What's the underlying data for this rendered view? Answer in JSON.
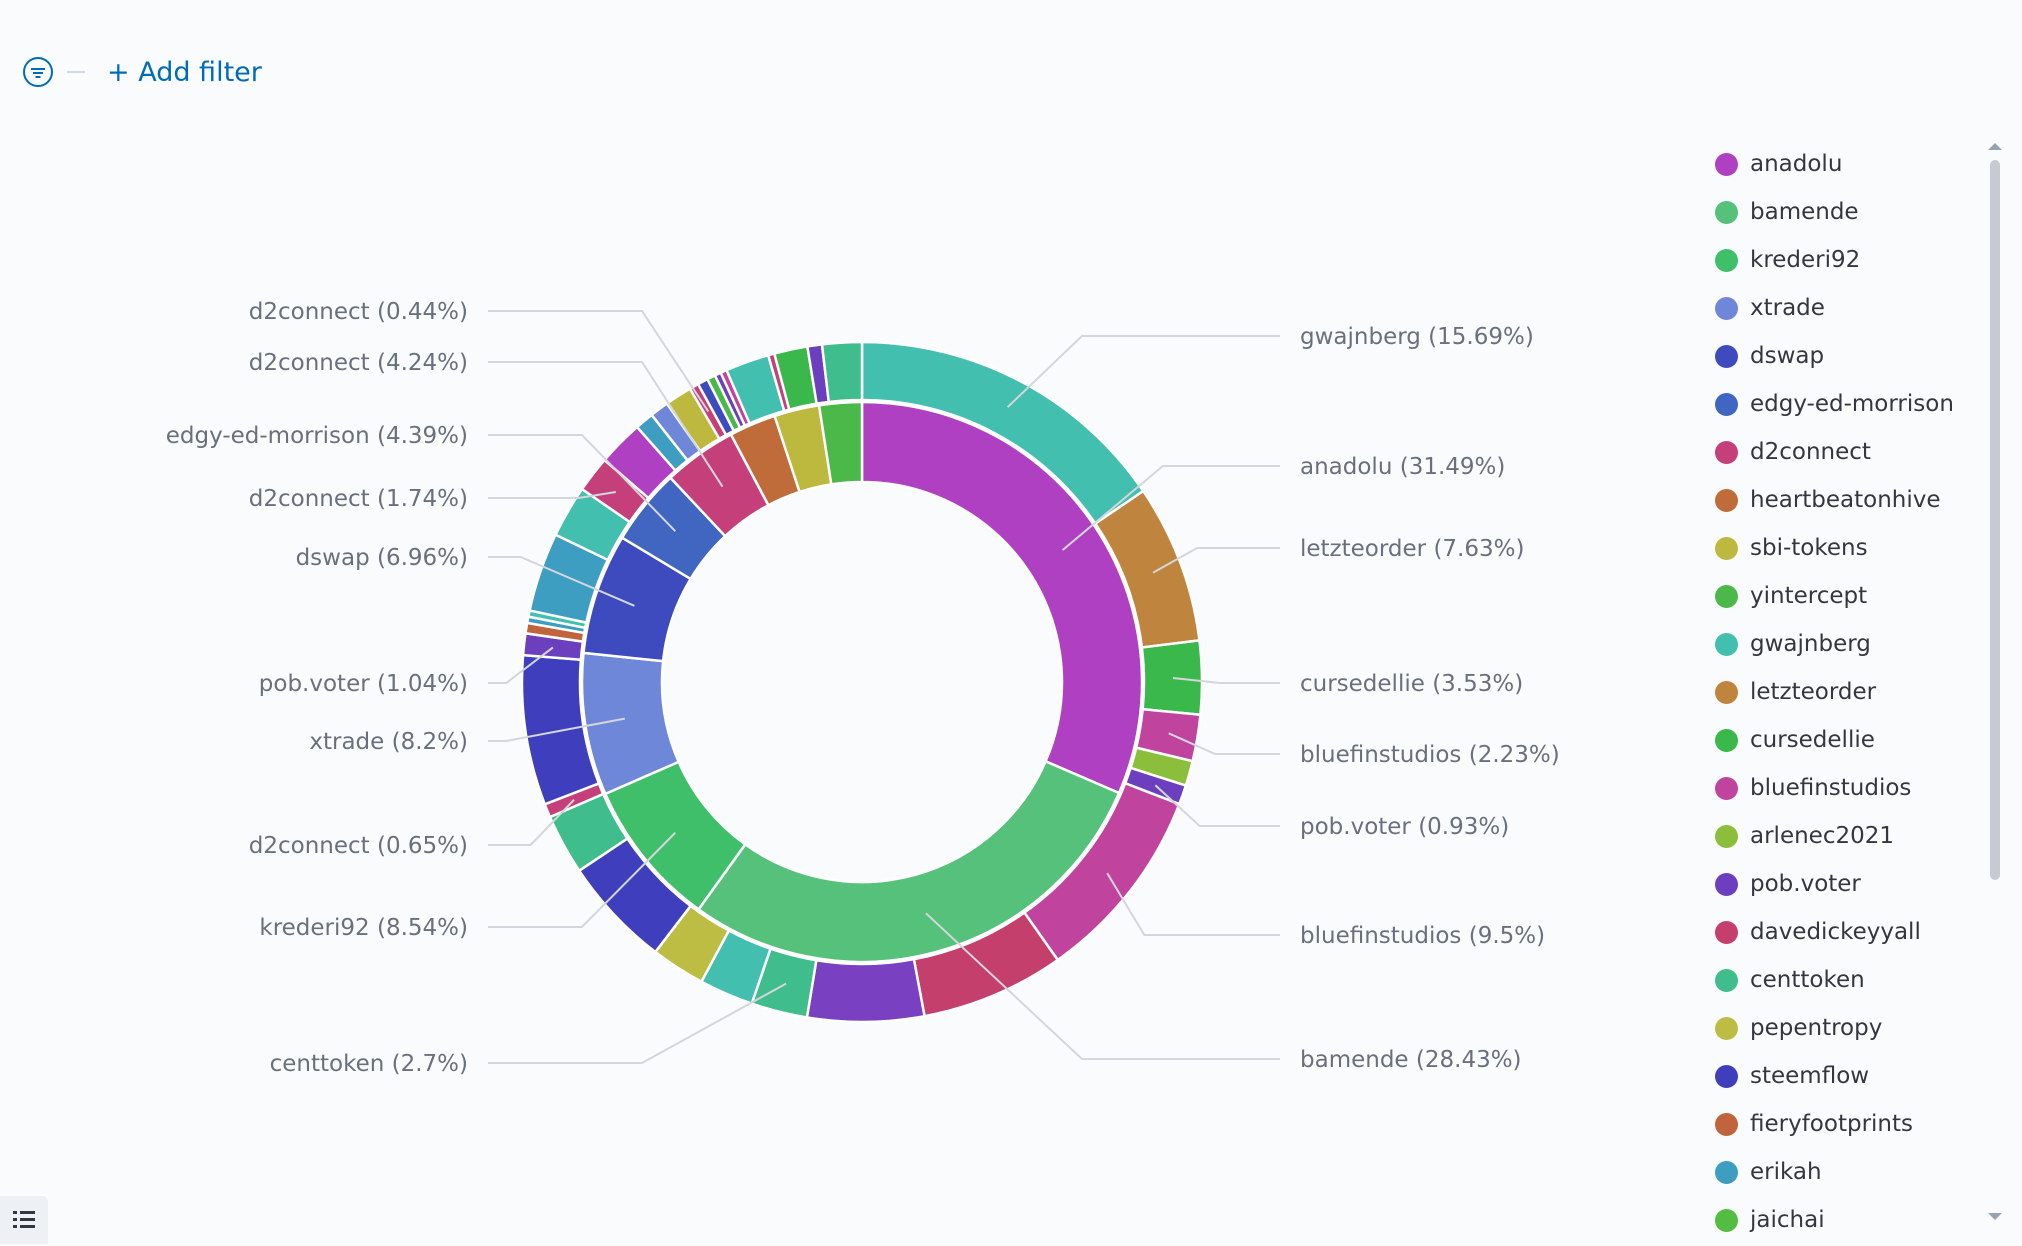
{
  "toolbar": {
    "add_filter_label": "+ Add filter",
    "filter_icon": "filter-icon"
  },
  "colors": {
    "anadolu": "#ae40c1",
    "bamende": "#56c17a",
    "kredeari92": "#3fbf6a",
    "xtrade": "#6f87d8",
    "dswap": "#3d4bbf",
    "edgy": "#4066c2",
    "d2connect": "#c5407b",
    "heartbeatonhive": "#c06c3a",
    "sbi": "#bdb83e",
    "yintercept": "#4bb84a",
    "gwajnberg": "#43bfb0",
    "letzteorder": "#bf853e",
    "cursedellie": "#3ab84b",
    "bluefinstudios": "#c0439e",
    "arlenec2021": "#8bbe3b",
    "pobvoter": "#6c3fbf",
    "davedickeyyall": "#c53f6d",
    "centtoken": "#3fbd8c",
    "pepentropy": "#bdbd43",
    "steemflow": "#3f3fbe",
    "fieryfootprints": "#c0643e",
    "erikah": "#3e9ec1",
    "jaichai": "#52bd40",
    "violet": "#7a40c2"
  },
  "legend": {
    "items": [
      {
        "label": "anadolu",
        "color": "#ae40c1"
      },
      {
        "label": "bamende",
        "color": "#56c17a"
      },
      {
        "label": "krederi92",
        "color": "#3fbf6a"
      },
      {
        "label": "xtrade",
        "color": "#6f87d8"
      },
      {
        "label": "dswap",
        "color": "#3d4bbf"
      },
      {
        "label": "edgy-ed-morrison",
        "color": "#4066c2"
      },
      {
        "label": "d2connect",
        "color": "#c5407b"
      },
      {
        "label": "heartbeatonhive",
        "color": "#c06c3a"
      },
      {
        "label": "sbi-tokens",
        "color": "#bdb83e"
      },
      {
        "label": "yintercept",
        "color": "#4bb84a"
      },
      {
        "label": "gwajnberg",
        "color": "#43bfb0"
      },
      {
        "label": "letzteorder",
        "color": "#bf853e"
      },
      {
        "label": "cursedellie",
        "color": "#3ab84b"
      },
      {
        "label": "bluefinstudios",
        "color": "#c0439e"
      },
      {
        "label": "arlenec2021",
        "color": "#8bbe3b"
      },
      {
        "label": "pob.voter",
        "color": "#6c3fbf"
      },
      {
        "label": "davedickeyyall",
        "color": "#c53f6d"
      },
      {
        "label": "centtoken",
        "color": "#3fbd8c"
      },
      {
        "label": "pepentropy",
        "color": "#bdbd43"
      },
      {
        "label": "steemflow",
        "color": "#3f3fbe"
      },
      {
        "label": "fieryfootprints",
        "color": "#c0643e"
      },
      {
        "label": "erikah",
        "color": "#3e9ec1"
      },
      {
        "label": "jaichai",
        "color": "#52bd40"
      }
    ]
  },
  "chart_data": {
    "type": "pie",
    "donut": true,
    "rings": 2,
    "inner_ring": [
      {
        "label": "anadolu",
        "value": 31.49,
        "color": "#ae40c1"
      },
      {
        "label": "bamende",
        "value": 28.43,
        "color": "#56c17a"
      },
      {
        "label": "krederi92",
        "value": 8.54,
        "color": "#3fbf6a"
      },
      {
        "label": "xtrade",
        "value": 8.2,
        "color": "#6f87d8"
      },
      {
        "label": "dswap",
        "value": 6.96,
        "color": "#3d4bbf"
      },
      {
        "label": "edgy-ed-morrison",
        "value": 4.39,
        "color": "#4066c2"
      },
      {
        "label": "d2connect",
        "value": 4.24,
        "color": "#c5407b"
      },
      {
        "label": "heartbeatonhive",
        "value": 2.7,
        "color": "#c06c3a"
      },
      {
        "label": "sbi-tokens",
        "value": 2.6,
        "color": "#bdb83e"
      },
      {
        "label": "yintercept",
        "value": 2.45,
        "color": "#4bb84a"
      }
    ],
    "outer_ring": [
      {
        "label": "gwajnberg",
        "value": 15.69,
        "color": "#43bfb0"
      },
      {
        "label": "letzteorder",
        "value": 7.63,
        "color": "#bf853e"
      },
      {
        "label": "cursedellie",
        "value": 3.53,
        "color": "#3ab84b"
      },
      {
        "label": "bluefinstudios",
        "value": 2.23,
        "color": "#c0439e"
      },
      {
        "label": "arlenec2021",
        "value": 1.2,
        "color": "#8bbe3b"
      },
      {
        "label": "pob.voter",
        "value": 0.93,
        "color": "#6c3fbf"
      },
      {
        "label": "bluefinstudios",
        "value": 9.5,
        "color": "#c0439e"
      },
      {
        "label": "davedickeyyall",
        "value": 6.9,
        "color": "#c53f6d"
      },
      {
        "label": "pob.voter",
        "value": 5.6,
        "color": "#7a40c2"
      },
      {
        "label": "centtoken",
        "value": 2.7,
        "color": "#3fbd8c"
      },
      {
        "label": "gwajnberg",
        "value": 2.6,
        "color": "#43bfb0"
      },
      {
        "label": "pepentropy",
        "value": 2.6,
        "color": "#bdbd43"
      },
      {
        "label": "steemflow",
        "value": 5.3,
        "color": "#3f3fbe"
      },
      {
        "label": "krederi92",
        "value": 2.9,
        "color": "#3fbd8c"
      },
      {
        "label": "d2connect",
        "value": 0.65,
        "color": "#c5407b"
      },
      {
        "label": "steemflow",
        "value": 7.2,
        "color": "#3f3fbe"
      },
      {
        "label": "pob.voter",
        "value": 1.04,
        "color": "#6c3fbf"
      },
      {
        "label": "fieryfootprints",
        "value": 0.5,
        "color": "#c0643e"
      },
      {
        "label": "erikah",
        "value": 0.3,
        "color": "#3e9ec1"
      },
      {
        "label": "gwajnberg",
        "value": 0.3,
        "color": "#43bfb0"
      },
      {
        "label": "erikah",
        "value": 3.8,
        "color": "#3e9ec1"
      },
      {
        "label": "gwajnberg",
        "value": 2.5,
        "color": "#43bfb0"
      },
      {
        "label": "d2connect",
        "value": 1.74,
        "color": "#c5407b"
      },
      {
        "label": "anadolu",
        "value": 2.2,
        "color": "#ae40c1"
      },
      {
        "label": "erikah",
        "value": 0.9,
        "color": "#3e9ec1"
      },
      {
        "label": "xtrade",
        "value": 0.9,
        "color": "#6f87d8"
      },
      {
        "label": "sbi-tokens",
        "value": 1.3,
        "color": "#bdb83e"
      },
      {
        "label": "d2connect",
        "value": 0.44,
        "color": "#c5407b"
      },
      {
        "label": "dswap",
        "value": 0.5,
        "color": "#3d4bbf"
      },
      {
        "label": "yintercept",
        "value": 0.4,
        "color": "#4bb84a"
      },
      {
        "label": "pob.voter",
        "value": 0.3,
        "color": "#6c3fbf"
      },
      {
        "label": "bluefinstudios",
        "value": 0.3,
        "color": "#c0439e"
      },
      {
        "label": "gwajnberg",
        "value": 2.1,
        "color": "#43bfb0"
      },
      {
        "label": "d2connect",
        "value": 0.3,
        "color": "#c5407b"
      },
      {
        "label": "cursedellie",
        "value": 1.6,
        "color": "#3ab84b"
      },
      {
        "label": "pob.voter",
        "value": 0.7,
        "color": "#6c3fbf"
      },
      {
        "label": "centtoken",
        "value": 1.9,
        "color": "#3fbd8c"
      }
    ],
    "annotations": [
      {
        "text": "gwajnberg (15.69%)",
        "side": "right",
        "ring": "outer",
        "label": "gwajnberg",
        "value": 15.69
      },
      {
        "text": "anadolu (31.49%)",
        "side": "right",
        "ring": "inner",
        "label": "anadolu",
        "value": 31.49
      },
      {
        "text": "letzteorder (7.63%)",
        "side": "right",
        "ring": "outer",
        "label": "letzteorder",
        "value": 7.63
      },
      {
        "text": "cursedellie (3.53%)",
        "side": "right",
        "ring": "outer",
        "label": "cursedellie",
        "value": 3.53
      },
      {
        "text": "bluefinstudios (2.23%)",
        "side": "right",
        "ring": "outer",
        "label": "bluefinstudios",
        "value": 2.23
      },
      {
        "text": "pob.voter (0.93%)",
        "side": "right",
        "ring": "outer",
        "label": "pob.voter",
        "value": 0.93
      },
      {
        "text": "bluefinstudios (9.5%)",
        "side": "right",
        "ring": "outer",
        "label": "bluefinstudios",
        "value": 9.5
      },
      {
        "text": "bamende (28.43%)",
        "side": "right",
        "ring": "inner",
        "label": "bamende",
        "value": 28.43
      },
      {
        "text": "centtoken (2.7%)",
        "side": "left",
        "ring": "outer",
        "label": "centtoken",
        "value": 2.7
      },
      {
        "text": "krederi92 (8.54%)",
        "side": "left",
        "ring": "inner",
        "label": "krederi92",
        "value": 8.54
      },
      {
        "text": "d2connect (0.65%)",
        "side": "left",
        "ring": "outer",
        "label": "d2connect",
        "value": 0.65
      },
      {
        "text": "xtrade (8.2%)",
        "side": "left",
        "ring": "inner",
        "label": "xtrade",
        "value": 8.2
      },
      {
        "text": "pob.voter (1.04%)",
        "side": "left",
        "ring": "outer",
        "label": "pob.voter",
        "value": 1.04
      },
      {
        "text": "dswap (6.96%)",
        "side": "left",
        "ring": "inner",
        "label": "dswap",
        "value": 6.96
      },
      {
        "text": "d2connect (1.74%)",
        "side": "left",
        "ring": "outer",
        "label": "d2connect",
        "value": 1.74
      },
      {
        "text": "edgy-ed-morrison (4.39%)",
        "side": "left",
        "ring": "inner",
        "label": "edgy-ed-morrison",
        "value": 4.39
      },
      {
        "text": "d2connect (4.24%)",
        "side": "left",
        "ring": "inner",
        "label": "d2connect",
        "value": 4.24
      },
      {
        "text": "d2connect (0.44%)",
        "side": "left",
        "ring": "outer",
        "label": "d2connect",
        "value": 0.44
      }
    ],
    "legend_position": "right"
  }
}
